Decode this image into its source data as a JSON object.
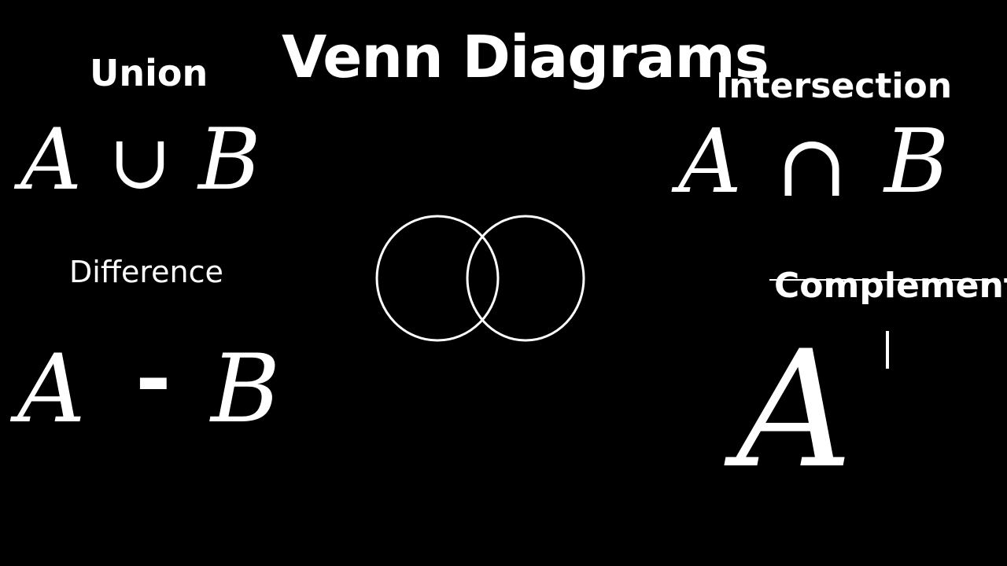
{
  "title": "Venn Diagrams",
  "sections": {
    "union": {
      "label": "Union",
      "left": "A",
      "operator": "∪",
      "right": "B"
    },
    "intersection": {
      "label": "Intersection",
      "left": "A",
      "operator": "∩",
      "right": "B"
    },
    "difference": {
      "label": "Difference",
      "left": "A",
      "operator": "-",
      "right": "B"
    },
    "complement": {
      "label": "Complement",
      "set": "A"
    }
  },
  "colors": {
    "background": "#000000",
    "foreground": "#ffffff"
  },
  "venn": {
    "circles": [
      "A",
      "B"
    ],
    "labels_shown": false
  }
}
